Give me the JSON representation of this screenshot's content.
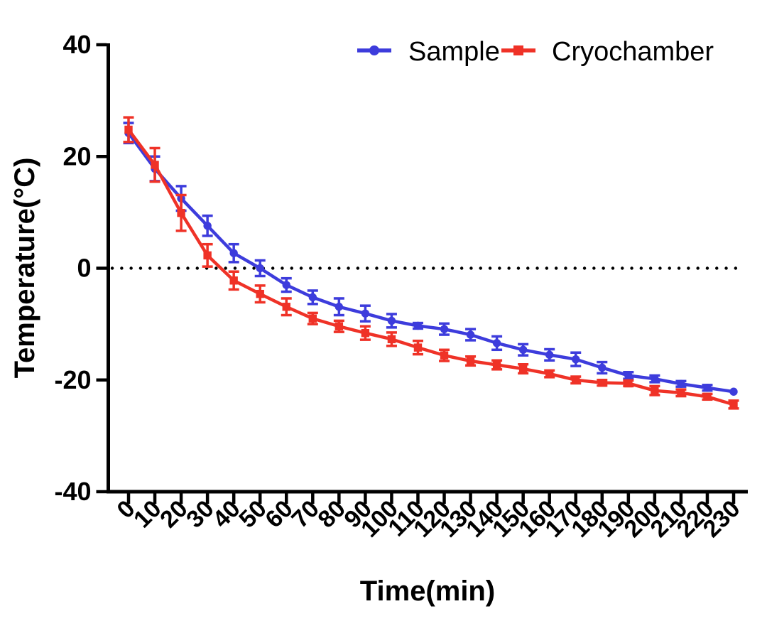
{
  "page": {
    "background": "#ffffff",
    "text_color": "#000000"
  },
  "chart_data": {
    "type": "line",
    "title": "",
    "xlabel": "Time(min)",
    "ylabel": "Temperature(°C)",
    "x": [
      0,
      10,
      20,
      30,
      40,
      50,
      60,
      70,
      80,
      90,
      100,
      110,
      120,
      130,
      140,
      150,
      160,
      170,
      180,
      190,
      200,
      210,
      220,
      230
    ],
    "xlim": [
      0,
      230
    ],
    "ylim": [
      -40,
      40
    ],
    "yticks": [
      40,
      20,
      0,
      -20,
      -40
    ],
    "xtick_labels": [
      "0",
      "10",
      "20",
      "30",
      "40",
      "50",
      "60",
      "70",
      "80",
      "90",
      "100",
      "110",
      "120",
      "130",
      "140",
      "150",
      "160",
      "170",
      "180",
      "190",
      "200",
      "210",
      "220",
      "230"
    ],
    "ytick_labels": [
      "40",
      "20",
      "0",
      "-20",
      "-40"
    ],
    "grid": false,
    "reference_line": {
      "y": 0,
      "style": "dotted",
      "color": "#000000"
    },
    "axis_color": "#000000",
    "legend": {
      "position": "top-right"
    },
    "series": [
      {
        "name": "Sample",
        "color": "#3d3cdc",
        "marker": "circle",
        "values": [
          24.2,
          17.8,
          12.5,
          7.6,
          2.7,
          0.0,
          -3.0,
          -5.2,
          -6.9,
          -8.1,
          -9.4,
          -10.3,
          -10.9,
          -11.9,
          -13.4,
          -14.6,
          -15.5,
          -16.3,
          -17.8,
          -19.2,
          -19.8,
          -20.7,
          -21.4,
          -22.1
        ],
        "errors": [
          1.8,
          2.2,
          2.2,
          1.8,
          1.6,
          1.4,
          1.2,
          1.2,
          1.5,
          1.4,
          1.2,
          0.5,
          1.0,
          1.0,
          1.2,
          1.0,
          1.0,
          1.2,
          1.0,
          0.6,
          0.6,
          0.5,
          0.5,
          0
        ]
      },
      {
        "name": "Cryochamber",
        "color": "#ef3227",
        "marker": "square",
        "values": [
          24.8,
          18.5,
          9.9,
          2.3,
          -2.2,
          -4.6,
          -6.9,
          -9.0,
          -10.4,
          -11.6,
          -12.7,
          -14.2,
          -15.6,
          -16.6,
          -17.3,
          -18.0,
          -18.9,
          -20.0,
          -20.5,
          -20.6,
          -21.9,
          -22.3,
          -23.0,
          -24.4
        ],
        "errors": [
          2.2,
          3.0,
          3.2,
          2.0,
          1.6,
          1.5,
          1.5,
          1.0,
          1.0,
          1.2,
          1.2,
          1.2,
          1.0,
          0.8,
          0.8,
          0.8,
          0.6,
          0.6,
          0.5,
          0.5,
          0.8,
          0.6,
          0.5,
          0.7
        ]
      }
    ]
  }
}
